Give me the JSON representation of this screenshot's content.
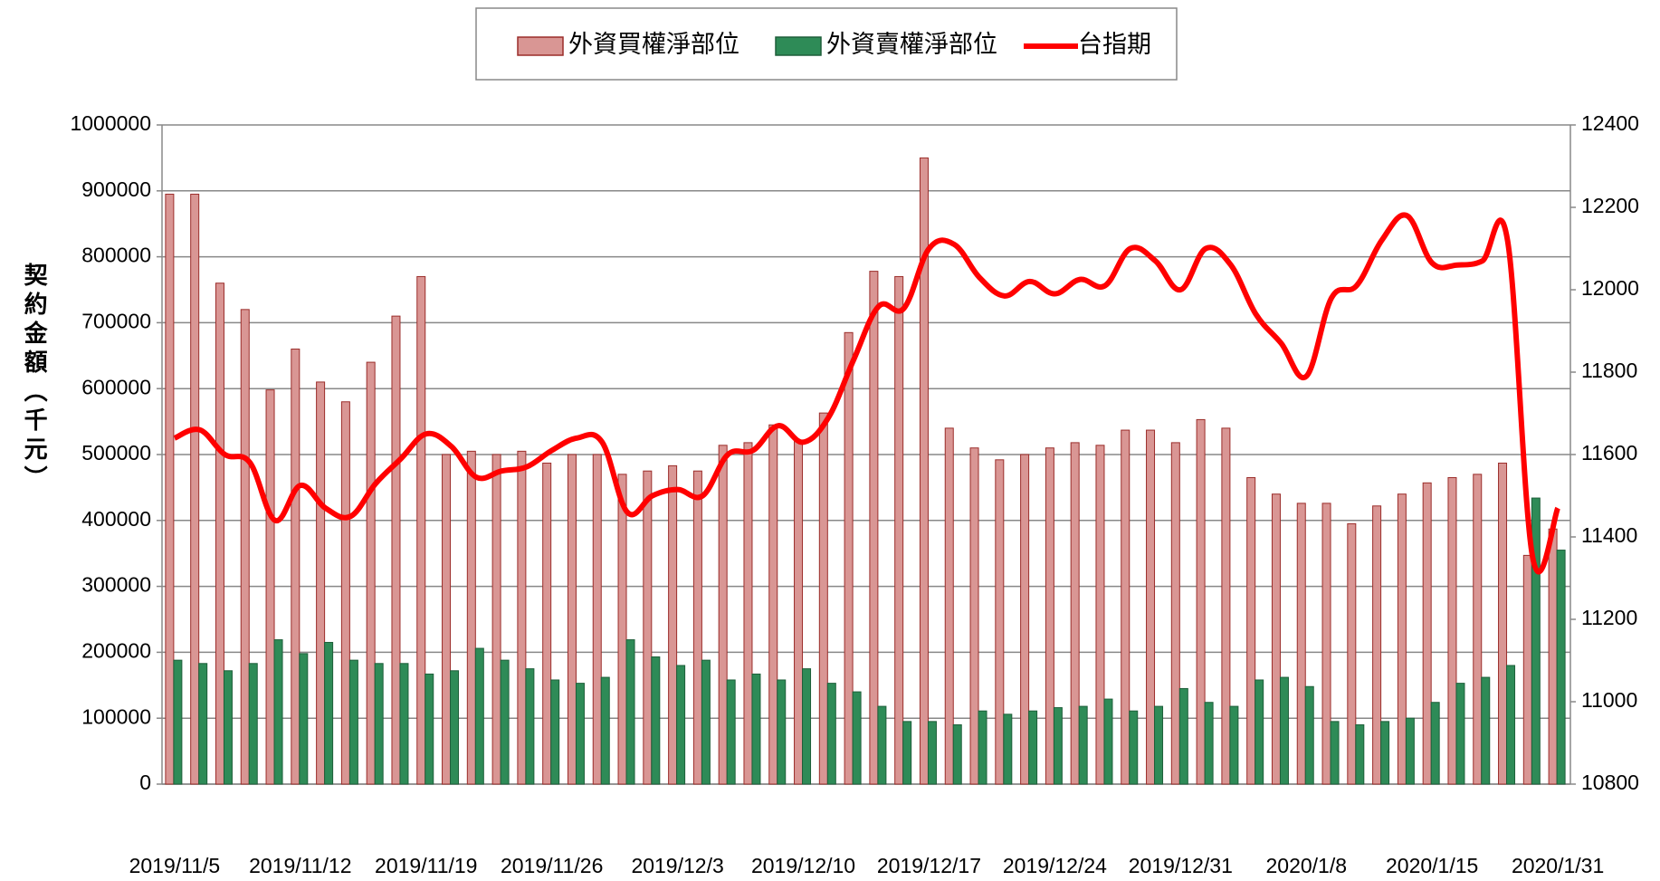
{
  "chart_data": {
    "type": "bar",
    "y_axis_title": "契約金額（千元）",
    "categories": [
      "2019/11/5",
      null,
      null,
      null,
      null,
      "2019/11/12",
      null,
      null,
      null,
      null,
      "2019/11/19",
      null,
      null,
      null,
      null,
      "2019/11/26",
      null,
      null,
      null,
      null,
      "2019/12/3",
      null,
      null,
      null,
      null,
      "2019/12/10",
      null,
      null,
      null,
      null,
      "2019/12/17",
      null,
      null,
      null,
      null,
      "2019/12/24",
      null,
      null,
      null,
      null,
      "2019/12/31",
      null,
      null,
      null,
      null,
      "2020/1/8",
      null,
      null,
      null,
      null,
      "2020/1/15",
      null,
      null,
      null,
      null,
      "2020/1/31"
    ],
    "series": [
      {
        "name": "外資買權淨部位",
        "type": "bar",
        "color": "#d99694",
        "values": [
          895000,
          895000,
          760000,
          720000,
          598000,
          660000,
          610000,
          580000,
          640000,
          710000,
          770000,
          500000,
          505000,
          500000,
          505000,
          487000,
          500000,
          500000,
          470000,
          475000,
          483000,
          475000,
          514000,
          518000,
          545000,
          520000,
          563000,
          685000,
          778000,
          770000,
          950000,
          540000,
          510000,
          492000,
          500000,
          510000,
          518000,
          514000,
          537000,
          537000,
          518000,
          553000,
          540000,
          465000,
          440000,
          426000,
          426000,
          395000,
          422000,
          440000,
          457000,
          465000,
          470000,
          487000,
          347000,
          387000
        ]
      },
      {
        "name": "外資賣權淨部位",
        "type": "bar",
        "color": "#2e8b57",
        "values": [
          188000,
          183000,
          172000,
          183000,
          219000,
          198000,
          215000,
          188000,
          183000,
          183000,
          167000,
          172000,
          206000,
          188000,
          175000,
          158000,
          153000,
          162000,
          219000,
          193000,
          180000,
          188000,
          158000,
          167000,
          158000,
          175000,
          153000,
          140000,
          118000,
          95000,
          95000,
          90000,
          111000,
          106000,
          111000,
          116000,
          118000,
          129000,
          111000,
          118000,
          145000,
          124000,
          118000,
          158000,
          162000,
          148000,
          95000,
          90000,
          95000,
          100000,
          124000,
          153000,
          162000,
          180000,
          434000,
          355000
        ]
      },
      {
        "name": "台指期",
        "type": "line",
        "axis": "y2",
        "color": "#ff0000",
        "values": [
          11640,
          11660,
          11600,
          11580,
          11440,
          11525,
          11470,
          11450,
          11530,
          11590,
          11650,
          11620,
          11545,
          11560,
          11570,
          11610,
          11640,
          11630,
          11460,
          11500,
          11515,
          11500,
          11600,
          11610,
          11670,
          11630,
          11690,
          11830,
          11960,
          11955,
          12100,
          12110,
          12030,
          11985,
          12020,
          11990,
          12025,
          12010,
          12100,
          12070,
          12000,
          12100,
          12060,
          11940,
          11870,
          11790,
          11980,
          12010,
          12120,
          12180,
          12065,
          12060,
          12070,
          12120,
          11350,
          11470
        ]
      }
    ],
    "ylim": [
      0,
      1000000
    ],
    "yticks": [
      0,
      100000,
      200000,
      300000,
      400000,
      500000,
      600000,
      700000,
      800000,
      900000,
      1000000
    ],
    "y2lim": [
      10800,
      12400
    ],
    "y2ticks": [
      10800,
      11000,
      11200,
      11400,
      11600,
      11800,
      12000,
      12200,
      12400
    ],
    "grid": true,
    "legend": "top"
  }
}
